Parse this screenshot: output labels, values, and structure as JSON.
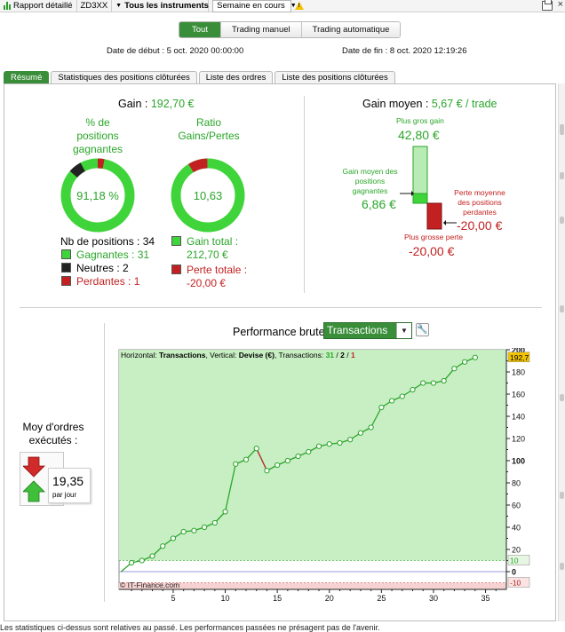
{
  "toolbar": {
    "report": "Rapport détaillé",
    "account": "ZD3XX",
    "instruments": "Tous les instruments",
    "period": "Semaine en cours"
  },
  "modes": [
    {
      "label": "Tout",
      "active": true
    },
    {
      "label": "Trading manuel",
      "active": false
    },
    {
      "label": "Trading automatique",
      "active": false
    }
  ],
  "dates": {
    "start": "Date de début :  5 oct. 2020 00:00:00",
    "end": "Date de fin :  8 oct. 2020 12:19:26"
  },
  "tabs": [
    {
      "label": "Résumé",
      "active": true
    },
    {
      "label": "Statistiques des positions clôturées",
      "active": false
    },
    {
      "label": "Liste des ordres",
      "active": false
    },
    {
      "label": "Liste des positions clôturées",
      "active": false
    }
  ],
  "summary": {
    "gain_label": "Gain : ",
    "gain_value": "192,70 €",
    "win_pct_title": [
      "% de",
      "positions",
      "gagnantes"
    ],
    "win_pct_value": "91,18 %",
    "win_pct": 91.18,
    "ratio_title": [
      "Ratio",
      "Gains/Pertes"
    ],
    "ratio_value": "10,63",
    "ratio_fraction": 0.914,
    "nb_positions": "Nb de positions : 34",
    "winners": "Gagnantes : 31",
    "neutral": "Neutres : 2",
    "losers": "Perdantes : 1",
    "gain_total_label": "Gain total :",
    "gain_total_value": "212,70 €",
    "loss_total_label": "Perte totale :",
    "loss_total_value": "-20,00 €"
  },
  "average": {
    "title": "Gain moyen : ",
    "value": "5,67 € / trade",
    "biggest_gain_label": "Plus gros gain",
    "biggest_gain_value": "42,80 €",
    "avg_win_label": [
      "Gain moyen des",
      "positions",
      "gagnantes"
    ],
    "avg_win_value": "6,86 €",
    "avg_loss_label": [
      "Perte moyenne",
      "des positions",
      "perdantes"
    ],
    "avg_loss_value": "-20,00 €",
    "biggest_loss_label": "Plus grosse perte",
    "biggest_loss_value": "-20,00 €"
  },
  "orders": {
    "title": [
      "Moy d'ordres",
      "exécutés :"
    ],
    "value": "19,35",
    "unit": "par jour"
  },
  "performance": {
    "title": "Performance brute",
    "selected": "Transactions",
    "legend_prefix": "Horizontal: ",
    "legend_h": "Transactions",
    "legend_mid": ", Vertical: ",
    "legend_v": "Devise (€)",
    "legend_tx": ", Transactions: ",
    "legend_win": "31",
    "legend_sep1": " / ",
    "legend_neutral": "2",
    "legend_sep2": " / ",
    "legend_loss": "1",
    "watermark": "© IT-Finance.com",
    "last_value_label": "192,7",
    "threshold_pos_label": "10",
    "threshold_neg_label": "-10"
  },
  "chart_data": {
    "type": "line",
    "x": [
      0,
      1,
      2,
      3,
      4,
      5,
      6,
      7,
      8,
      9,
      10,
      11,
      12,
      13,
      14,
      15,
      16,
      17,
      18,
      19,
      20,
      21,
      22,
      23,
      24,
      25,
      26,
      27,
      28,
      29,
      30,
      31,
      32,
      33,
      34
    ],
    "y": [
      0,
      8,
      10,
      14,
      23,
      30,
      36,
      37,
      40,
      44,
      54,
      97,
      101,
      111,
      91,
      96,
      100,
      104,
      108,
      113,
      115,
      116,
      119,
      125,
      130,
      148,
      154,
      158,
      164,
      170,
      170,
      172,
      183,
      189,
      193
    ],
    "loss_segment_index": 14,
    "xticks": [
      5,
      10,
      15,
      20,
      25,
      30,
      35
    ],
    "yticks": [
      0,
      20,
      40,
      60,
      80,
      100,
      120,
      140,
      160,
      180,
      200
    ],
    "xlim": [
      -0.2,
      37
    ],
    "ylim": [
      -16,
      200
    ],
    "colors": {
      "win": "#2aa52a",
      "loss": "#b02020",
      "area": "#c8efc3",
      "neg_area": "#f7d2d2",
      "axis": "#222222",
      "zero_line": "#9999dd"
    }
  },
  "colors": {
    "accent": "#3a8e3a",
    "green": "#2aa52a",
    "red": "#c32121",
    "neutral": "#222222"
  }
}
